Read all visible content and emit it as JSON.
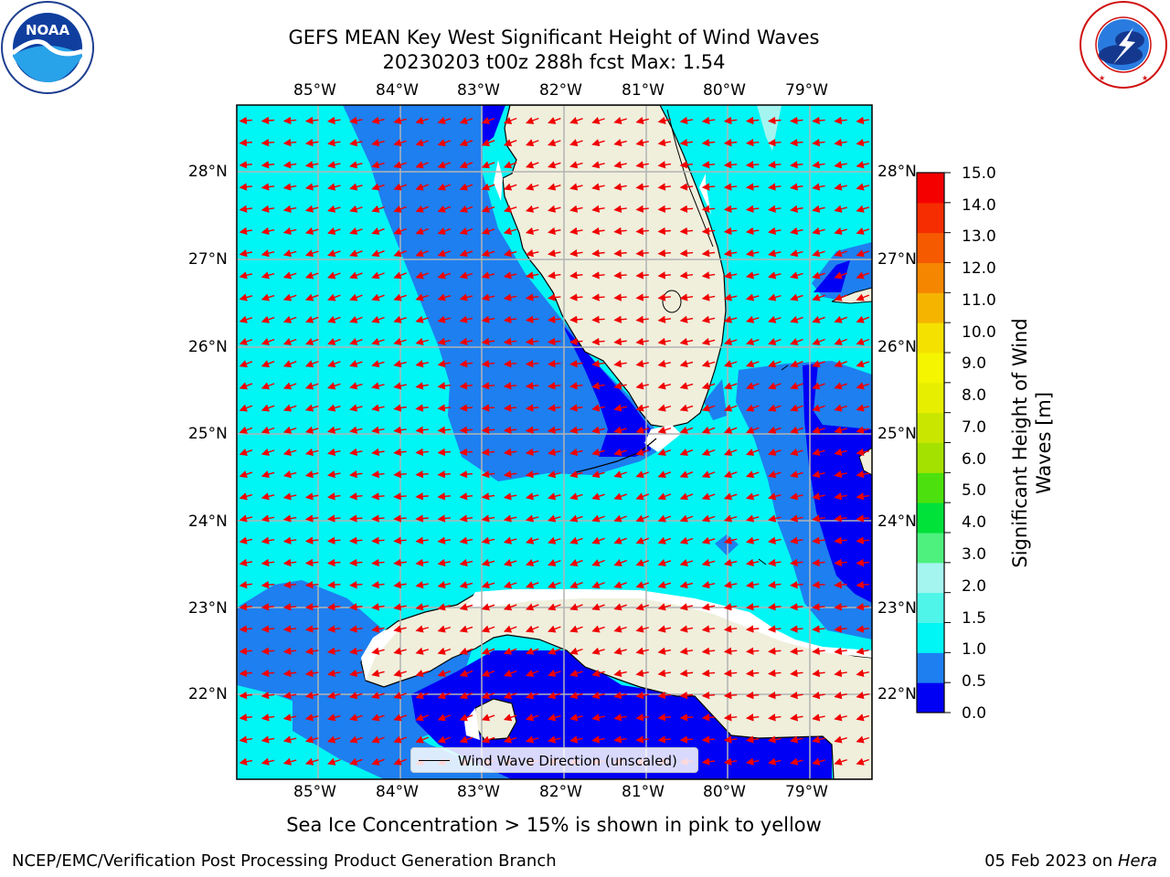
{
  "title": {
    "line1": "GEFS MEAN Key West Significant Height of Wind Waves",
    "line2": "20230203 t00z 288h fcst   Max: 1.54"
  },
  "logos": {
    "left": {
      "text": "NOAA",
      "icon": "noaa-logo-icon",
      "ring_text": "NATIONAL OCEANIC AND ATMOSPHERIC ADMINISTRATION · U.S. DEPARTMENT OF COMMERCE"
    },
    "right": {
      "icon": "nws-logo-icon",
      "ring_text": "NATIONAL WEATHER SERVICE"
    }
  },
  "axes": {
    "lon_labels": [
      "85°W",
      "84°W",
      "83°W",
      "82°W",
      "81°W",
      "80°W",
      "79°W"
    ],
    "lat_labels": [
      "28°N",
      "27°N",
      "26°N",
      "25°N",
      "24°N",
      "23°N",
      "22°N"
    ],
    "lon_range": [
      -86.0,
      -78.25
    ],
    "lat_range": [
      21.05,
      28.75
    ],
    "grid": true
  },
  "colorbar": {
    "ticks": [
      "15.0",
      "14.0",
      "13.0",
      "12.0",
      "11.0",
      "10.0",
      "9.0",
      "8.0",
      "7.0",
      "6.0",
      "5.0",
      "4.0",
      "3.0",
      "2.0",
      "1.5",
      "1.0",
      "0.5",
      "0.0"
    ],
    "label": "Significant Height of Wind Waves [m]",
    "label_line1": "Significant Height of Wind",
    "label_line2": "Waves [m]",
    "colors_bottom_to_top": [
      "#0000f5",
      "#1e7ff0",
      "#00f5f5",
      "#4ef5e8",
      "#a4f5f0",
      "#4ef07e",
      "#00e13a",
      "#4ce10e",
      "#a4e100",
      "#c8e600",
      "#e8ee00",
      "#f5f500",
      "#f5e100",
      "#f5b400",
      "#f58700",
      "#f55a00",
      "#f52d00",
      "#f50000"
    ]
  },
  "map": {
    "colors": {
      "very_low": "#0000f5",
      "low": "#1e7ff0",
      "mid": "#00f5f5",
      "high": "#a4f5f0",
      "land": "#efefdc",
      "grid": "#b3b3b3",
      "arrow": "#f00000",
      "coast": "#000000"
    },
    "arrow_direction": "west-southwest"
  },
  "legend": {
    "label": "Wind Wave Direction (unscaled)"
  },
  "note": "Sea Ice Concentration > 15% is shown in pink to yellow",
  "footer": {
    "left": "NCEP/EMC/Verification Post Processing Product Generation Branch",
    "right_date": "05 Feb 2023 on ",
    "right_host": "Hera"
  }
}
